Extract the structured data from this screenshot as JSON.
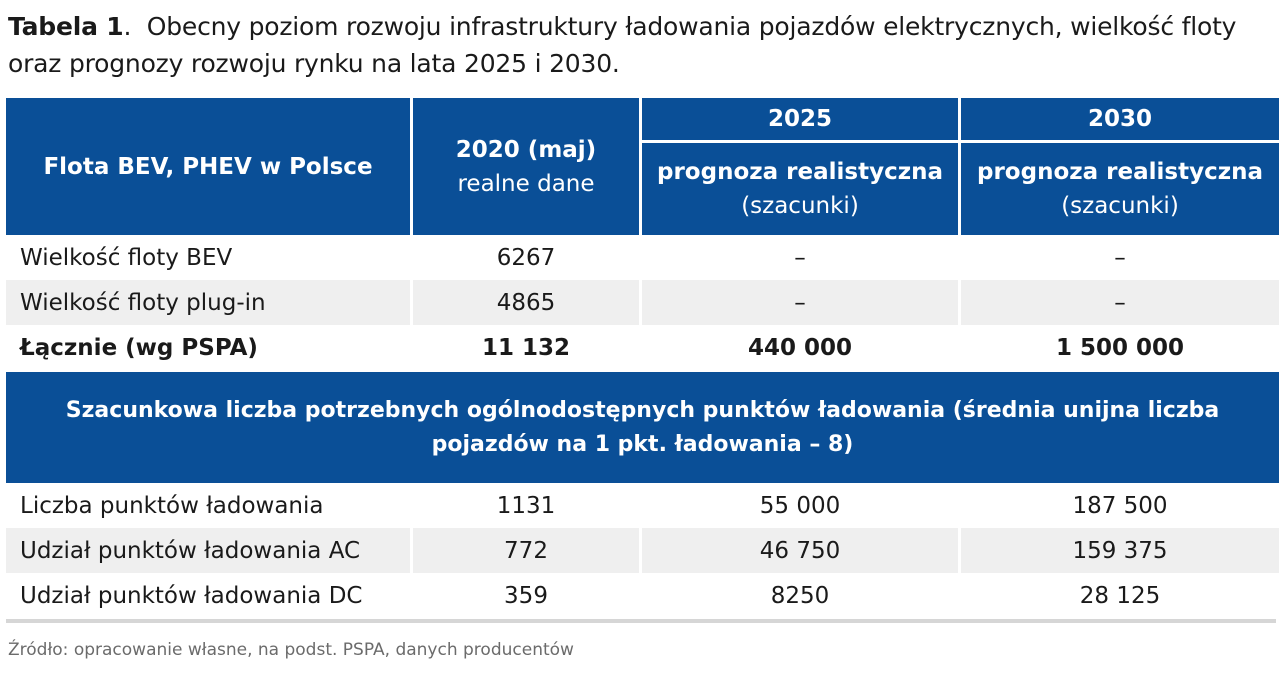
{
  "caption": {
    "label": "Tabela 1",
    "separator": ".",
    "text": "Obecny poziom rozwoju infrastruktury ładowania pojazdów elektrycznych, wielkość floty oraz prognozy rozwoju rynku na lata 2025 i 2030."
  },
  "table": {
    "header": {
      "col1": "Flota BEV, PHEV w Polsce",
      "col2_title": "2020 (maj)",
      "col2_sub": "realne dane",
      "year_2025": "2025",
      "year_2030": "2030",
      "forecast_2025_title": "prognoza realistyczna",
      "forecast_2025_sub": "(szacunki)",
      "forecast_2030_title": "prognoza realistyczna",
      "forecast_2030_sub": "(szacunki)"
    },
    "fleet_rows": [
      {
        "label": "Wielkość floty BEV",
        "v2020": "6267",
        "v2025": "–",
        "v2030": "–"
      },
      {
        "label": "Wielkość floty plug-in",
        "v2020": "4865",
        "v2025": "–",
        "v2030": "–"
      },
      {
        "label": "Łącznie (wg PSPA)",
        "v2020": "11 132",
        "v2025": "440 000",
        "v2030": "1 500 000"
      }
    ],
    "section_header": "Szacunkowa liczba potrzebnych ogólnodostępnych punktów ładowania (średnia unijna liczba pojazdów na 1 pkt. ładowania – 8)",
    "charging_rows": [
      {
        "label": "Liczba punktów ładowania",
        "v2020": "1131",
        "v2025": "55 000",
        "v2030": "187 500"
      },
      {
        "label": "Udział punktów ładowania AC",
        "v2020": "772",
        "v2025": "46 750",
        "v2030": "159 375"
      },
      {
        "label": "Udział punktów ładowania DC",
        "v2020": "359",
        "v2025": "8250",
        "v2030": "28 125"
      }
    ]
  },
  "source": "Źródło: opracowanie własne, na podst. PSPA, danych producentów",
  "colors": {
    "header_bg": "#0a4f97",
    "row_alt_bg": "#efefef",
    "source_text": "#6b6b6b"
  }
}
